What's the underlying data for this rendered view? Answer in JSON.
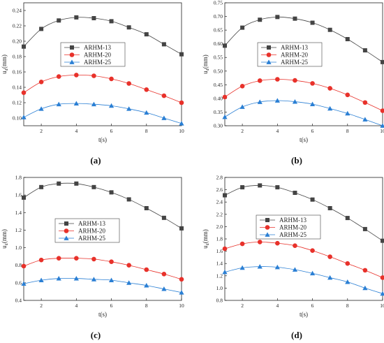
{
  "chart_data": [
    {
      "type": "line",
      "panel_label": "(a)",
      "xlabel": "t(s)",
      "ylabel": "u₄(mm)",
      "xlim": [
        1,
        10
      ],
      "ylim": [
        0.09,
        0.25
      ],
      "xticks": [
        2,
        4,
        6,
        8,
        10
      ],
      "yticks": [
        0.1,
        0.12,
        0.14,
        0.16,
        0.18,
        0.2,
        0.22,
        0.24
      ],
      "tick_decimals": 2,
      "legend_position": "center",
      "x": [
        1,
        2,
        3,
        4,
        5,
        6,
        7,
        8,
        9,
        10
      ],
      "series": [
        {
          "name": "ARHM-13",
          "color": "#444444",
          "marker": "square",
          "values": [
            0.193,
            0.216,
            0.227,
            0.231,
            0.23,
            0.226,
            0.218,
            0.209,
            0.196,
            0.183
          ]
        },
        {
          "name": "ARHM-20",
          "color": "#e8312a",
          "marker": "circle",
          "values": [
            0.133,
            0.147,
            0.154,
            0.156,
            0.155,
            0.151,
            0.145,
            0.137,
            0.129,
            0.12
          ]
        },
        {
          "name": "ARHM-25",
          "color": "#2a7fd4",
          "marker": "triangle",
          "values": [
            0.101,
            0.112,
            0.118,
            0.119,
            0.118,
            0.116,
            0.112,
            0.107,
            0.1,
            0.093
          ]
        }
      ]
    },
    {
      "type": "line",
      "panel_label": "(b)",
      "xlabel": "t(s)",
      "ylabel": "u₄(mm)",
      "xlim": [
        1,
        10
      ],
      "ylim": [
        0.3,
        0.75
      ],
      "xticks": [
        2,
        4,
        6,
        8,
        10
      ],
      "yticks": [
        0.3,
        0.35,
        0.4,
        0.45,
        0.5,
        0.55,
        0.6,
        0.65,
        0.7,
        0.75
      ],
      "tick_decimals": 2,
      "legend_position": "center",
      "x": [
        1,
        2,
        3,
        4,
        5,
        6,
        7,
        8,
        9,
        10
      ],
      "series": [
        {
          "name": "ARHM-13",
          "color": "#444444",
          "marker": "square",
          "values": [
            0.593,
            0.659,
            0.688,
            0.698,
            0.692,
            0.677,
            0.651,
            0.617,
            0.576,
            0.533
          ]
        },
        {
          "name": "ARHM-20",
          "color": "#e8312a",
          "marker": "circle",
          "values": [
            0.405,
            0.445,
            0.465,
            0.47,
            0.466,
            0.455,
            0.437,
            0.413,
            0.385,
            0.355
          ]
        },
        {
          "name": "ARHM-25",
          "color": "#2a7fd4",
          "marker": "triangle",
          "values": [
            0.332,
            0.369,
            0.387,
            0.392,
            0.388,
            0.379,
            0.363,
            0.345,
            0.323,
            0.3
          ]
        }
      ]
    },
    {
      "type": "line",
      "panel_label": "(c)",
      "xlabel": "t(s)",
      "ylabel": "u₄(mm)",
      "xlim": [
        1,
        10
      ],
      "ylim": [
        0.4,
        1.8
      ],
      "xticks": [
        2,
        4,
        6,
        8,
        10
      ],
      "yticks": [
        0.4,
        0.6,
        0.8,
        1.0,
        1.2,
        1.4,
        1.6,
        1.8
      ],
      "tick_decimals": 1,
      "legend_position": "center",
      "x": [
        1,
        2,
        3,
        4,
        5,
        6,
        7,
        8,
        9,
        10
      ],
      "series": [
        {
          "name": "ARHM-13",
          "color": "#444444",
          "marker": "square",
          "values": [
            1.57,
            1.69,
            1.73,
            1.73,
            1.69,
            1.63,
            1.55,
            1.45,
            1.34,
            1.22
          ]
        },
        {
          "name": "ARHM-20",
          "color": "#e8312a",
          "marker": "circle",
          "values": [
            0.79,
            0.86,
            0.88,
            0.88,
            0.87,
            0.84,
            0.8,
            0.75,
            0.7,
            0.64
          ]
        },
        {
          "name": "ARHM-25",
          "color": "#2a7fd4",
          "marker": "triangle",
          "values": [
            0.59,
            0.63,
            0.65,
            0.65,
            0.64,
            0.63,
            0.6,
            0.57,
            0.53,
            0.49
          ]
        }
      ]
    },
    {
      "type": "line",
      "panel_label": "(d)",
      "xlabel": "t(s)",
      "ylabel": "u₄(mm)",
      "xlim": [
        1,
        10
      ],
      "ylim": [
        0.8,
        2.8
      ],
      "xticks": [
        2,
        4,
        6,
        8,
        10
      ],
      "yticks": [
        0.8,
        1.0,
        1.2,
        1.4,
        1.6,
        1.8,
        2.0,
        2.2,
        2.4,
        2.6,
        2.8
      ],
      "tick_decimals": 1,
      "legend_position": "center",
      "x": [
        1,
        2,
        3,
        4,
        5,
        6,
        7,
        8,
        9,
        10
      ],
      "series": [
        {
          "name": "ARHM-13",
          "color": "#444444",
          "marker": "square",
          "values": [
            2.51,
            2.64,
            2.67,
            2.64,
            2.55,
            2.44,
            2.3,
            2.14,
            1.96,
            1.77
          ]
        },
        {
          "name": "ARHM-20",
          "color": "#e8312a",
          "marker": "circle",
          "values": [
            1.64,
            1.72,
            1.75,
            1.73,
            1.69,
            1.61,
            1.51,
            1.4,
            1.29,
            1.17
          ]
        },
        {
          "name": "ARHM-25",
          "color": "#2a7fd4",
          "marker": "triangle",
          "values": [
            1.26,
            1.33,
            1.35,
            1.34,
            1.3,
            1.24,
            1.17,
            1.1,
            1.0,
            0.91
          ]
        }
      ]
    }
  ]
}
